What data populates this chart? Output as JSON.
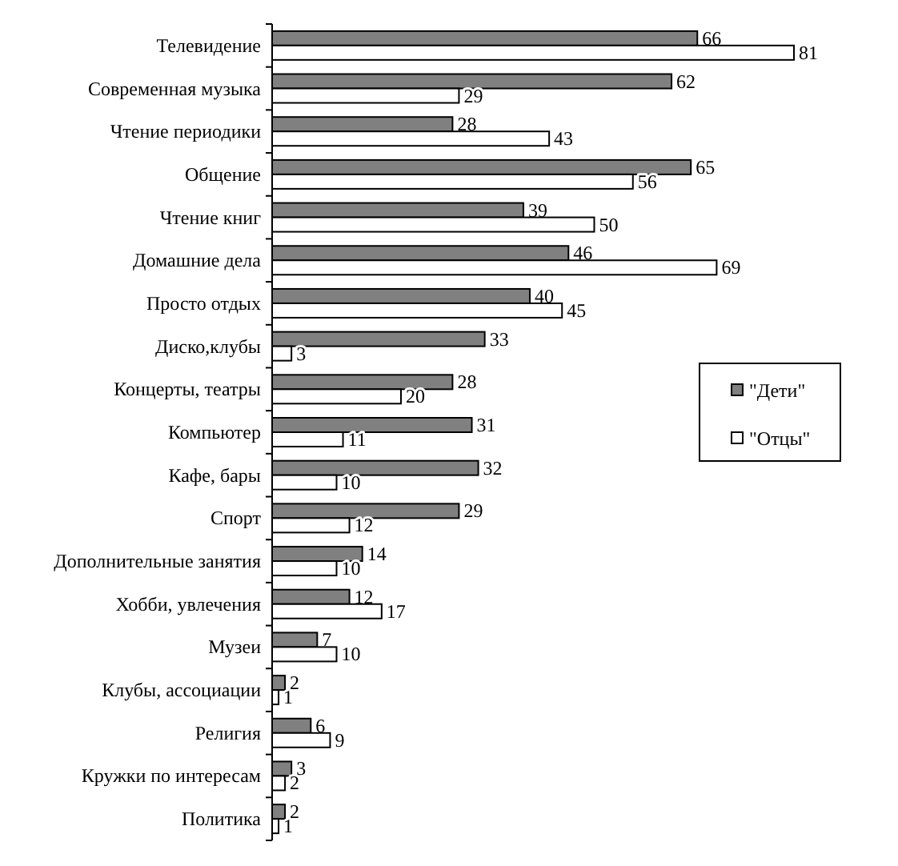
{
  "chart_data": {
    "type": "bar",
    "orientation": "horizontal",
    "data_labels": true,
    "legend": "right",
    "categories": [
      "Телевидение",
      "Современная музыка",
      "Чтение периодики",
      "Общение",
      "Чтение книг",
      "Домашние дела",
      "Просто отдых",
      "Диско,клубы",
      "Концерты, театры",
      "Компьютер",
      "Кафе, бары",
      "Спорт",
      "Дополнительные занятия",
      "Хобби, увлечения",
      "Музеи",
      "Клубы, ассоциации",
      "Религия",
      "Кружки по интересам",
      "Политика"
    ],
    "series": [
      {
        "name": "\"Дети\"",
        "color": "#808080",
        "values": [
          66,
          62,
          28,
          65,
          39,
          46,
          40,
          33,
          28,
          31,
          32,
          29,
          14,
          12,
          7,
          2,
          6,
          3,
          2
        ]
      },
      {
        "name": "\"Отцы\"",
        "color": "#ffffff",
        "values": [
          81,
          29,
          43,
          56,
          50,
          69,
          45,
          3,
          20,
          11,
          10,
          12,
          10,
          17,
          10,
          1,
          9,
          2,
          1
        ]
      }
    ]
  }
}
